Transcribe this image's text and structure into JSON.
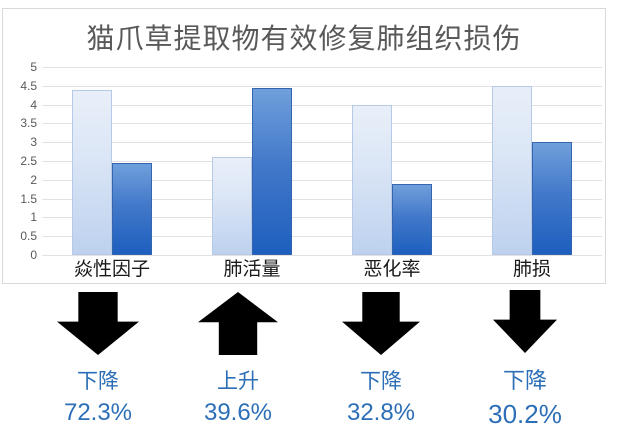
{
  "page": {
    "background": "#ffffff"
  },
  "chart": {
    "title": "猫爪草提取物有效修复肺组织损伤",
    "title_color": "#595959",
    "panel_border_color": "#d9d9d9",
    "gridline_color": "#e2e2e2",
    "y_axis": {
      "labels": [
        "5",
        "4.5",
        "4",
        "3.5",
        "3",
        "2.5",
        "2",
        "1.5",
        "1",
        "0.5",
        "0"
      ],
      "min": 0,
      "max": 5,
      "label_color": "#595959"
    },
    "category_label_color": "#1a1a1a"
  },
  "chart_data": {
    "type": "bar",
    "title": "猫爪草提取物有效修复肺组织损伤",
    "categories": [
      "焱性因子",
      "肺活量",
      "恶化率",
      "肺损"
    ],
    "series": [
      {
        "name": "light-blue-bars",
        "values": [
          4.4,
          2.6,
          4.0,
          4.5
        ],
        "fill_top": "#e9eff9",
        "fill_bottom": "#bdd1ee",
        "border_color": "#b6c9e7"
      },
      {
        "name": "dark-blue-bars",
        "values": [
          2.45,
          4.45,
          1.9,
          3.0
        ],
        "fill_top": "#6fa0dc",
        "fill_bottom": "#1d5fbf",
        "border_color": "#3465ae"
      }
    ],
    "ylim": [
      0,
      5
    ],
    "ytick_step": 0.5,
    "grid": true,
    "legend": "none",
    "xlabel": "",
    "ylabel": ""
  },
  "annotations": [
    {
      "direction": "down",
      "label": "下降",
      "value": "72.3%"
    },
    {
      "direction": "up",
      "label": "上升",
      "value": "39.6%"
    },
    {
      "direction": "down",
      "label": "下降",
      "value": "32.8%"
    },
    {
      "direction": "down",
      "label": "下降",
      "value": "30.2%"
    }
  ],
  "annotation_style": {
    "arrow_color": "#000000",
    "text_color": "#2c6fb7"
  }
}
